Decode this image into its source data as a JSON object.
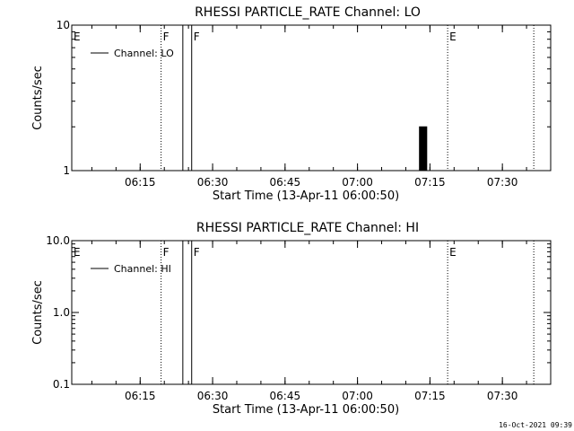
{
  "chart_data": [
    {
      "type": "line",
      "title": "RHESSI PARTICLE_RATE Channel: LO",
      "xlabel": "Start Time (13-Apr-11 06:00:50)",
      "ylabel": "Counts/sec",
      "yscale": "log",
      "ylim": [
        1,
        10
      ],
      "ytick_values": [
        1,
        10
      ],
      "ytick_labels": [
        "1",
        "10"
      ],
      "xlim": [
        "06:00:50",
        "07:40:00"
      ],
      "xtick_values": [
        "06:15",
        "06:30",
        "06:45",
        "07:00",
        "07:15",
        "07:30"
      ],
      "xtick_labels": [
        "06:15",
        "06:30",
        "06:45",
        "07:00",
        "07:15",
        "07:30"
      ],
      "legend": {
        "label": "Channel: LO",
        "placement": "top-left"
      },
      "grid": false,
      "series": [
        {
          "name": "Channel: LO",
          "x": [
            "07:12:40",
            "07:12:50",
            "07:13:00",
            "07:13:10",
            "07:13:20",
            "07:13:30",
            "07:13:40",
            "07:13:50",
            "07:14:00",
            "07:14:10",
            "07:14:20",
            "07:14:30"
          ],
          "y": [
            1,
            2,
            1,
            2,
            1,
            2,
            1,
            2,
            1,
            2,
            1,
            1
          ]
        }
      ],
      "markers": [
        {
          "time": "06:00:50",
          "label": "E",
          "style": "none"
        },
        {
          "time": "06:19:20",
          "label": "F",
          "style": "dotted"
        },
        {
          "time": "06:23:50",
          "label": "",
          "style": "solid"
        },
        {
          "time": "06:25:40",
          "label": "F",
          "style": "solid"
        },
        {
          "time": "07:18:40",
          "label": "E",
          "style": "dotted"
        },
        {
          "time": "07:36:30",
          "label": "",
          "style": "dotted"
        }
      ]
    },
    {
      "type": "line",
      "title": "RHESSI PARTICLE_RATE Channel: HI",
      "xlabel": "Start Time (13-Apr-11 06:00:50)",
      "ylabel": "Counts/sec",
      "yscale": "log",
      "ylim": [
        0.1,
        10
      ],
      "ytick_values": [
        0.1,
        1,
        10
      ],
      "ytick_labels": [
        "0.1",
        "1.0",
        "10.0"
      ],
      "xlim": [
        "06:00:50",
        "07:40:00"
      ],
      "xtick_values": [
        "06:15",
        "06:30",
        "06:45",
        "07:00",
        "07:15",
        "07:30"
      ],
      "xtick_labels": [
        "06:15",
        "06:30",
        "06:45",
        "07:00",
        "07:15",
        "07:30"
      ],
      "legend": {
        "label": "Channel: HI",
        "placement": "top-left"
      },
      "grid": false,
      "series": [
        {
          "name": "Channel: HI",
          "x": [],
          "y": []
        }
      ],
      "markers": [
        {
          "time": "06:00:50",
          "label": "E",
          "style": "none"
        },
        {
          "time": "06:19:20",
          "label": "F",
          "style": "dotted"
        },
        {
          "time": "06:23:50",
          "label": "",
          "style": "solid"
        },
        {
          "time": "06:25:40",
          "label": "F",
          "style": "solid"
        },
        {
          "time": "07:18:40",
          "label": "E",
          "style": "dotted"
        },
        {
          "time": "07:36:30",
          "label": "",
          "style": "dotted"
        }
      ]
    }
  ],
  "footer": {
    "timestamp": "16-Oct-2021 09:39"
  }
}
